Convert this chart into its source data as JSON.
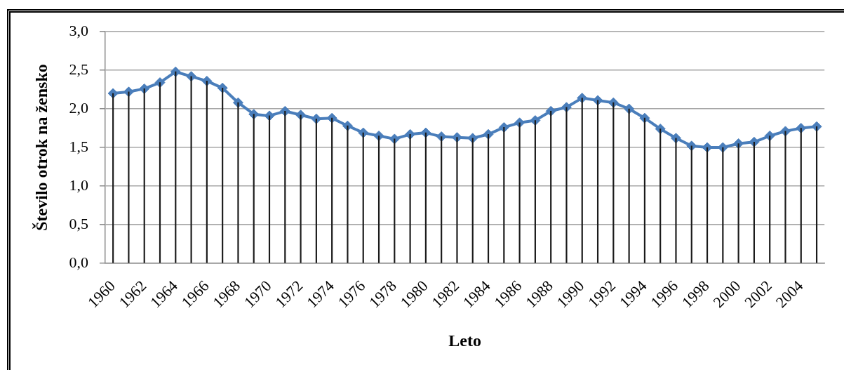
{
  "chart_data": {
    "type": "line",
    "xlabel": "Leto",
    "ylabel": "Število otrok na žensko",
    "categories": [
      "1960",
      null,
      "1962",
      null,
      "1964",
      null,
      "1966",
      null,
      "1968",
      null,
      "1970",
      null,
      "1972",
      null,
      "1974",
      null,
      "1976",
      null,
      "1978",
      null,
      "1980",
      null,
      "1982",
      null,
      "1984",
      null,
      "1986",
      null,
      "1988",
      null,
      "1990",
      null,
      "1992",
      null,
      "1994",
      null,
      "1996",
      null,
      "1998",
      null,
      "2000",
      null,
      "2002",
      null,
      "2004",
      null
    ],
    "series": [
      {
        "color": "#4a7ebb",
        "values": [
          2.2,
          2.22,
          2.26,
          2.34,
          2.48,
          2.42,
          2.36,
          2.27,
          2.08,
          1.93,
          1.91,
          1.97,
          1.92,
          1.87,
          1.88,
          1.78,
          1.69,
          1.65,
          1.61,
          1.67,
          1.69,
          1.64,
          1.63,
          1.62,
          1.67,
          1.76,
          1.82,
          1.85,
          1.97,
          2.02,
          2.14,
          2.11,
          2.08,
          2.0,
          1.88,
          1.74,
          1.62,
          1.52,
          1.5,
          1.5,
          1.55,
          1.57,
          1.65,
          1.71,
          1.75,
          1.77
        ]
      },
      {
        "type": "bar",
        "color": "#1a1a1a",
        "values": [
          2.2,
          2.22,
          2.26,
          2.34,
          2.48,
          2.42,
          2.36,
          2.27,
          2.08,
          1.93,
          1.91,
          1.97,
          1.92,
          1.87,
          1.88,
          1.78,
          1.69,
          1.65,
          1.61,
          1.67,
          1.69,
          1.64,
          1.63,
          1.62,
          1.67,
          1.76,
          1.82,
          1.85,
          1.97,
          2.02,
          2.14,
          2.11,
          2.08,
          2.0,
          1.88,
          1.74,
          1.62,
          1.52,
          1.5,
          1.5,
          1.55,
          1.57,
          1.65,
          1.71,
          1.75,
          1.77
        ]
      }
    ],
    "ylim": [
      0,
      3
    ],
    "yticks": [
      {
        "value": 0,
        "label": "0,0"
      },
      {
        "value": 0.5,
        "label": "0,5"
      },
      {
        "value": 1,
        "label": "1,0"
      },
      {
        "value": 1.5,
        "label": "1,5"
      },
      {
        "value": 2,
        "label": "2,0"
      },
      {
        "value": 2.5,
        "label": "2,5"
      },
      {
        "value": 3,
        "label": "3,0"
      }
    ],
    "grid": "y",
    "marker": "diamond",
    "line_style": "solid"
  }
}
